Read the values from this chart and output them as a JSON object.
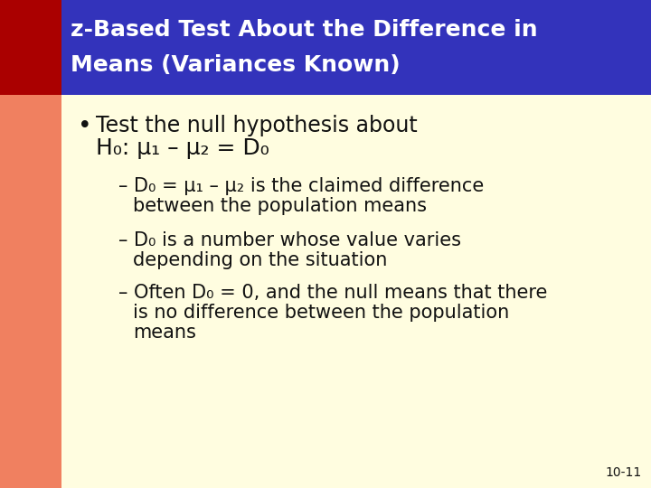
{
  "title_line1": "z-Based Test About the Difference in",
  "title_line2": "Means (Variances Known)",
  "title_bg_color": "#3333BB",
  "title_text_color": "#FFFFFF",
  "left_bar_color1": "#AA0000",
  "left_bar_color2": "#F08060",
  "body_bg_color": "#FFFDE0",
  "body_text_color": "#111111",
  "slide_bg_color": "#FFFFFF",
  "page_number": "10-11",
  "bullet_main_line1": "Test the null hypothesis about",
  "bullet_main_line2": "H₀: μ₁ – μ₂ = D₀",
  "sub1_line1": "– D₀ = μ₁ – μ₂ is the claimed difference",
  "sub1_line2": "between the population means",
  "sub2_line1": "– D₀ is a number whose value varies",
  "sub2_line2": "depending on the situation",
  "sub3_line1": "– Often D₀ = 0, and the null means that there",
  "sub3_line2": "is no difference between the population",
  "sub3_line3": "means",
  "title_fontsize": 18,
  "bullet_fontsize": 17,
  "sub_fontsize": 15,
  "page_fontsize": 10,
  "left_bar_width": 68,
  "title_bar_height": 105,
  "fig_width": 7.2,
  "fig_height": 5.4,
  "dpi": 100
}
